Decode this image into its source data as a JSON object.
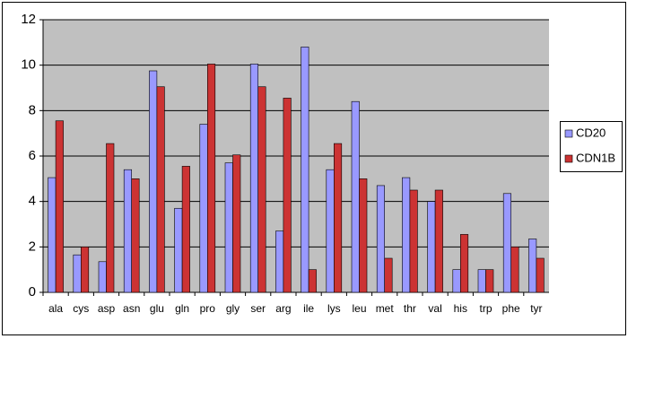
{
  "chart_data": {
    "type": "bar",
    "categories": [
      "ala",
      "cys",
      "asp",
      "asn",
      "glu",
      "gln",
      "pro",
      "gly",
      "ser",
      "arg",
      "ile",
      "lys",
      "leu",
      "met",
      "thr",
      "val",
      "his",
      "trp",
      "phe",
      "tyr"
    ],
    "series": [
      {
        "name": "CD20",
        "color": "#9999ff",
        "values": [
          5.05,
          1.65,
          1.35,
          5.4,
          9.75,
          3.7,
          7.4,
          5.7,
          10.05,
          2.7,
          10.8,
          5.4,
          8.4,
          4.7,
          5.05,
          4.0,
          1.0,
          1.0,
          4.35,
          2.35
        ]
      },
      {
        "name": "CDN1B",
        "color": "#cc3333",
        "values": [
          7.55,
          2.0,
          6.55,
          5.0,
          9.05,
          5.55,
          10.05,
          6.05,
          9.05,
          8.55,
          1.0,
          6.55,
          5.0,
          1.5,
          4.5,
          4.5,
          2.55,
          1.0,
          2.0,
          1.5
        ]
      }
    ],
    "ylim": [
      0,
      12
    ],
    "yticks": [
      0,
      2,
      4,
      6,
      8,
      10,
      12
    ],
    "grid": true,
    "legend": "right"
  }
}
